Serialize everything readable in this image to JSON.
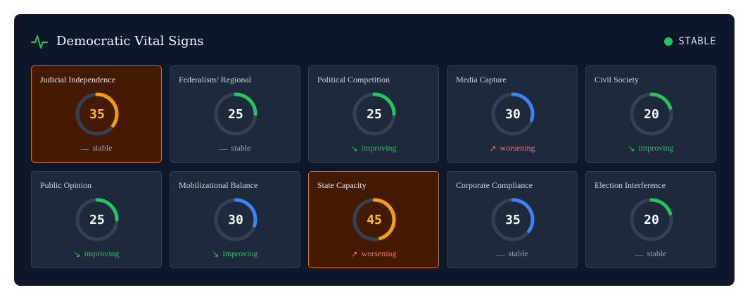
{
  "header": {
    "title": "Democratic Vital Signs",
    "status": "STABLE",
    "status_color": "#22c55e",
    "icon": "pulse-icon"
  },
  "colors": {
    "stable": "#94a3b8",
    "improving": "#22c55e",
    "worsening": "#f87171",
    "gauge_green": "#22c55e",
    "gauge_blue": "#3b82f6",
    "gauge_amber": "#f59e0b",
    "alert_value": "#fbbf24"
  },
  "trend_icons": {
    "stable": "—",
    "improving": "↘",
    "worsening": "↗"
  },
  "cards": [
    {
      "label": "Judicial Independence",
      "value": "35",
      "score": 35,
      "trend": "stable",
      "trend_label": "stable",
      "color": "#f59e0b",
      "alert": true
    },
    {
      "label": "Federalism/ Regional",
      "value": "25",
      "score": 25,
      "trend": "stable",
      "trend_label": "stable",
      "color": "#22c55e",
      "alert": false
    },
    {
      "label": "Political Competition",
      "value": "25",
      "score": 25,
      "trend": "improving",
      "trend_label": "improving",
      "color": "#22c55e",
      "alert": false
    },
    {
      "label": "Media Capture",
      "value": "30",
      "score": 30,
      "trend": "worsening",
      "trend_label": "worsening",
      "color": "#3b82f6",
      "alert": false
    },
    {
      "label": "Civil Society",
      "value": "20",
      "score": 20,
      "trend": "improving",
      "trend_label": "improving",
      "color": "#22c55e",
      "alert": false
    },
    {
      "label": "Public Opinion",
      "value": "25",
      "score": 25,
      "trend": "improving",
      "trend_label": "improving",
      "color": "#22c55e",
      "alert": false
    },
    {
      "label": "Mobilizational Balance",
      "value": "30",
      "score": 30,
      "trend": "improving",
      "trend_label": "improving",
      "color": "#3b82f6",
      "alert": false
    },
    {
      "label": "State Capacity",
      "value": "45",
      "score": 45,
      "trend": "worsening",
      "trend_label": "worsening",
      "color": "#f59e0b",
      "alert": true
    },
    {
      "label": "Corporate Compliance",
      "value": "35",
      "score": 35,
      "trend": "stable",
      "trend_label": "stable",
      "color": "#3b82f6",
      "alert": false
    },
    {
      "label": "Election Interference",
      "value": "20",
      "score": 20,
      "trend": "stable",
      "trend_label": "stable",
      "color": "#22c55e",
      "alert": false
    }
  ]
}
